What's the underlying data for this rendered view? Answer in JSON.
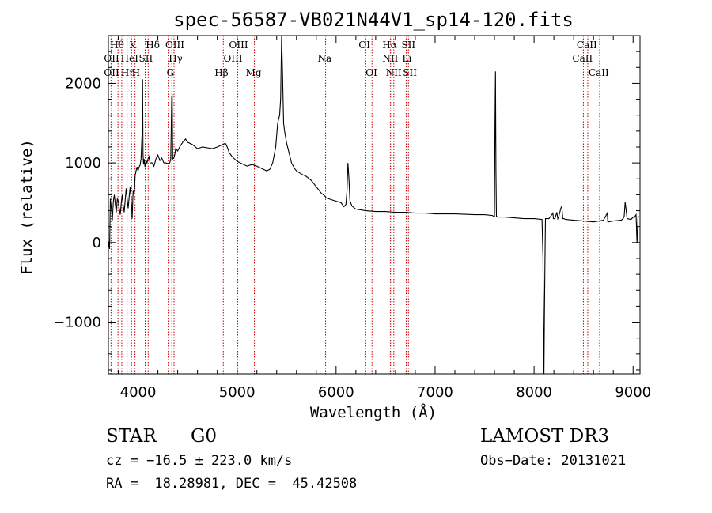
{
  "chart_data": {
    "type": "line",
    "title": "spec-56587-VB021N44V1_sp14-120.fits",
    "xlabel": "Wavelength (Å)",
    "ylabel": "Flux (relative)",
    "xlim": [
      3700,
      9070
    ],
    "ylim": [
      -1650,
      2600
    ],
    "xticks": [
      4000,
      5000,
      6000,
      7000,
      8000,
      9000
    ],
    "xtick_labels": [
      "4000",
      "5000",
      "6000",
      "7000",
      "8000",
      "9000"
    ],
    "yticks": [
      -1000,
      0,
      1000,
      2000
    ],
    "ytick_labels": [
      "−1000",
      "0",
      "1000",
      "2000"
    ],
    "grid": false,
    "series": [
      {
        "name": "spectrum",
        "x": [
          3700,
          3705,
          3712,
          3720,
          3730,
          3740,
          3750,
          3760,
          3770,
          3780,
          3790,
          3800,
          3810,
          3820,
          3830,
          3840,
          3850,
          3860,
          3870,
          3880,
          3890,
          3900,
          3910,
          3920,
          3930,
          3935,
          3940,
          3950,
          3960,
          3965,
          3970,
          3980,
          3990,
          4000,
          4010,
          4020,
          4030,
          4040,
          4045,
          4050,
          4055,
          4060,
          4070,
          4080,
          4090,
          4100,
          4110,
          4120,
          4140,
          4160,
          4180,
          4200,
          4220,
          4240,
          4260,
          4280,
          4300,
          4320,
          4330,
          4340,
          4345,
          4350,
          4360,
          4370,
          4380,
          4400,
          4420,
          4450,
          4480,
          4500,
          4550,
          4600,
          4650,
          4700,
          4750,
          4800,
          4850,
          4870,
          4880,
          4890,
          4900,
          4920,
          4950,
          5000,
          5050,
          5100,
          5150,
          5200,
          5250,
          5300,
          5330,
          5360,
          5390,
          5410,
          5420,
          5430,
          5440,
          5450,
          5460,
          5470,
          5480,
          5500,
          5520,
          5550,
          5580,
          5600,
          5650,
          5700,
          5750,
          5800,
          5850,
          5890,
          5900,
          5950,
          6000,
          6050,
          6080,
          6100,
          6110,
          6120,
          6130,
          6140,
          6160,
          6200,
          6300,
          6400,
          6500,
          6600,
          6700,
          6800,
          6900,
          7000,
          7200,
          7400,
          7500,
          7580,
          7590,
          7600,
          7605,
          7610,
          7615,
          7620,
          7630,
          7650,
          7700,
          7800,
          7900,
          8000,
          8080,
          8090,
          8095,
          8100,
          8105,
          8110,
          8115,
          8120,
          8130,
          8150,
          8190,
          8195,
          8200,
          8210,
          8230,
          8240,
          8250,
          8270,
          8280,
          8290,
          8300,
          8320,
          8400,
          8500,
          8600,
          8700,
          8740,
          8745,
          8750,
          8800,
          8880,
          8900,
          8910,
          8920,
          8940,
          8980,
          9000,
          9010,
          9020,
          9030,
          9040,
          9050,
          9060
        ],
        "y": [
          20,
          0,
          -80,
          550,
          420,
          280,
          520,
          600,
          480,
          380,
          550,
          520,
          420,
          350,
          500,
          600,
          460,
          380,
          540,
          680,
          540,
          430,
          580,
          700,
          540,
          450,
          300,
          650,
          600,
          700,
          840,
          900,
          950,
          900,
          950,
          970,
          1050,
          1350,
          2050,
          1120,
          980,
          1050,
          950,
          1030,
          1000,
          1050,
          1080,
          1000,
          1000,
          960,
          1050,
          1100,
          1030,
          1060,
          1000,
          1000,
          990,
          1000,
          1050,
          1830,
          1840,
          1050,
          1060,
          1100,
          1180,
          1150,
          1200,
          1260,
          1300,
          1260,
          1230,
          1180,
          1200,
          1190,
          1180,
          1200,
          1230,
          1240,
          1250,
          1230,
          1200,
          1130,
          1080,
          1020,
          990,
          960,
          980,
          960,
          930,
          900,
          920,
          1000,
          1200,
          1500,
          1550,
          1600,
          1800,
          2600,
          2100,
          1500,
          1400,
          1250,
          1150,
          1000,
          930,
          900,
          860,
          830,
          780,
          700,
          620,
          580,
          560,
          540,
          520,
          500,
          450,
          480,
          650,
          1000,
          800,
          530,
          460,
          420,
          400,
          390,
          390,
          380,
          380,
          370,
          370,
          360,
          360,
          350,
          350,
          340,
          330,
          330,
          1500,
          2150,
          900,
          330,
          320,
          320,
          320,
          310,
          300,
          300,
          290,
          -200,
          -1200,
          -1650,
          -900,
          -200,
          300,
          300,
          300,
          300,
          370,
          300,
          300,
          300,
          380,
          300,
          330,
          430,
          460,
          300,
          300,
          290,
          280,
          270,
          260,
          280,
          370,
          260,
          260,
          270,
          280,
          300,
          330,
          510,
          300,
          290,
          320,
          310,
          330,
          350,
          -10,
          330,
          320
        ],
        "color": "#000000"
      }
    ],
    "lines": [
      {
        "name": "OII",
        "x": 3727,
        "label": "OII",
        "row": 2,
        "dx": -9
      },
      {
        "name": "OII-2",
        "x": 3727,
        "label": "OII",
        "row": 3,
        "dx": -9
      },
      {
        "name": "Htheta",
        "x": 3797,
        "label": "Hθ",
        "row": 1,
        "dx": -10
      },
      {
        "name": "Heta",
        "x": 3835,
        "label": "Hη",
        "row": 3,
        "dx": -1
      },
      {
        "name": "HeI",
        "x": 3889,
        "label": "HeI",
        "row": 2,
        "dx": -8
      },
      {
        "name": "K",
        "x": 3934,
        "label": "K",
        "row": 1,
        "dx": -3
      },
      {
        "name": "H",
        "x": 3969,
        "label": "H",
        "row": 3,
        "dx": -4
      },
      {
        "name": "SII-blue",
        "x": 4072,
        "label": "SII",
        "row": 2,
        "dx": -8
      },
      {
        "name": "Hdelta",
        "x": 4102,
        "label": "Hδ",
        "row": 1,
        "dx": -3
      },
      {
        "name": "G",
        "x": 4304,
        "label": "G",
        "row": 3,
        "dx": -2
      },
      {
        "name": "OIII-4363",
        "x": 4363,
        "label": "OIII",
        "row": 1,
        "dx": -11
      },
      {
        "name": "Hgamma",
        "x": 4341,
        "label": "Hγ",
        "row": 2,
        "dx": -4
      },
      {
        "name": "Hbeta",
        "x": 4861,
        "label": "Hβ",
        "row": 3,
        "dx": -11
      },
      {
        "name": "OIII-4959",
        "x": 4959,
        "label": "OIII",
        "row": 2,
        "dx": -12
      },
      {
        "name": "OIII-5007",
        "x": 5007,
        "label": "OIII",
        "row": 1,
        "dx": -11
      },
      {
        "name": "Mg",
        "x": 5175,
        "label": "Mg",
        "row": 3,
        "dx": -11
      },
      {
        "name": "Na",
        "x": 5894,
        "label": "Na",
        "row": 2,
        "dx": -10
      },
      {
        "name": "OI-6300",
        "x": 6300,
        "label": "OI",
        "row": 1,
        "dx": -9
      },
      {
        "name": "OI-6363",
        "x": 6363,
        "label": "OI",
        "row": 3,
        "dx": -8
      },
      {
        "name": "NII-6548",
        "x": 6548,
        "label": "NII",
        "row": 2,
        "dx": -10
      },
      {
        "name": "Halpha",
        "x": 6563,
        "label": "Hα",
        "row": 1,
        "dx": -12
      },
      {
        "name": "NII-6583",
        "x": 6583,
        "label": "NII",
        "row": 3,
        "dx": -10
      },
      {
        "name": "Li",
        "x": 6708,
        "label": "Li",
        "row": 2,
        "dx": -5
      },
      {
        "name": "SII-6716",
        "x": 6716,
        "label": "SII",
        "row": 1,
        "dx": -7
      },
      {
        "name": "SII-6731",
        "x": 6731,
        "label": "SII",
        "row": 3,
        "dx": -7
      },
      {
        "name": "CaII-8498",
        "x": 8498,
        "label": "CaII",
        "row": 2,
        "dx": -14
      },
      {
        "name": "CaII-8542",
        "x": 8542,
        "label": "CaII",
        "row": 1,
        "dx": -14
      },
      {
        "name": "CaII-8662",
        "x": 8662,
        "label": "CaII",
        "row": 3,
        "dx": -14
      }
    ]
  },
  "info": {
    "object_class": "STAR",
    "subclass": "G0",
    "survey": "LAMOST DR3",
    "velocity": "cz = −16.5 ± 223.0 km/s",
    "obs_date": "Obs−Date: 20131021",
    "coords": "RA =  18.28981, DEC =  45.42508"
  },
  "colors": {
    "spectrum": "#000000",
    "line_marker": "#cc0000",
    "axes": "#000000"
  }
}
